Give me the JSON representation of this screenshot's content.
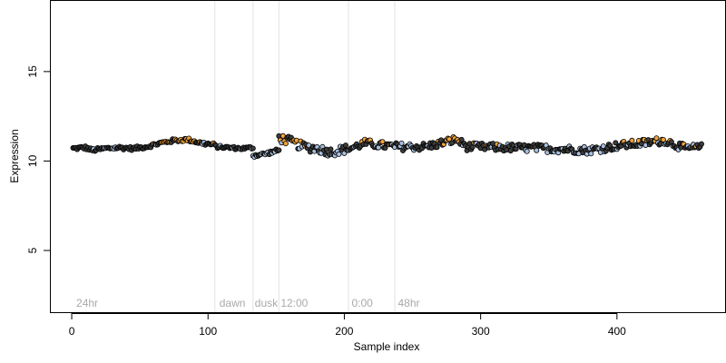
{
  "chart_data": {
    "type": "scatter",
    "title": "",
    "xlabel": "Sample index",
    "ylabel": "Expression",
    "xlim": [
      -16,
      480
    ],
    "ylim": [
      1.5,
      19
    ],
    "x_ticks": [
      0,
      100,
      200,
      300,
      400
    ],
    "y_ticks": [
      5,
      10,
      15
    ],
    "grid": false,
    "colors": {
      "point_edge": "#000000",
      "fill_black": "#3c3c3c",
      "fill_blue": "#a8c0e0",
      "fill_orange": "#f0a33c",
      "boundary_line": "#e3e3e3",
      "annotation_text": "#a9a9a9"
    },
    "annotations": [
      {
        "label": "24hr",
        "x": 2
      },
      {
        "label": "dawn",
        "x": 107
      },
      {
        "label": "dusk",
        "x": 133
      },
      {
        "label": "12:00",
        "x": 152
      },
      {
        "label": "0:00",
        "x": 204
      },
      {
        "label": "48hr",
        "x": 238
      }
    ],
    "boundaries": [
      105,
      133,
      152,
      203,
      237
    ],
    "segments": [
      {
        "x_start": 1,
        "x_end": 105,
        "y_profile": [
          [
            1,
            10.7
          ],
          [
            10,
            10.75
          ],
          [
            15,
            10.6
          ],
          [
            25,
            10.7
          ],
          [
            35,
            10.75
          ],
          [
            45,
            10.7
          ],
          [
            55,
            10.8
          ],
          [
            65,
            11.0
          ],
          [
            75,
            11.15
          ],
          [
            85,
            11.2
          ],
          [
            95,
            11.0
          ],
          [
            105,
            10.9
          ]
        ],
        "noise": 0.1,
        "color_pattern": "hm"
      },
      {
        "x_start": 106,
        "x_end": 133,
        "y_profile": [
          [
            106,
            10.8
          ],
          [
            115,
            10.75
          ],
          [
            125,
            10.7
          ],
          [
            133,
            10.75
          ]
        ],
        "noise": 0.08,
        "color_pattern": "hm"
      },
      {
        "x_start": 133,
        "x_end": 152,
        "y_profile": [
          [
            133,
            10.3
          ],
          [
            142,
            10.4
          ],
          [
            152,
            10.6
          ]
        ],
        "noise": 0.1,
        "color_pattern": "hm"
      },
      {
        "x_start": 152,
        "x_end": 203,
        "y_profile": [
          [
            152,
            11.3
          ],
          [
            160,
            11.1
          ],
          [
            170,
            10.8
          ],
          [
            180,
            10.7
          ],
          [
            190,
            10.5
          ],
          [
            203,
            10.7
          ]
        ],
        "noise": 0.25,
        "color_pattern": "hm"
      },
      {
        "x_start": 204,
        "x_end": 237,
        "y_profile": [
          [
            204,
            10.7
          ],
          [
            215,
            11.0
          ],
          [
            225,
            10.9
          ],
          [
            237,
            10.8
          ]
        ],
        "noise": 0.22,
        "color_pattern": "hm"
      },
      {
        "x_start": 238,
        "x_end": 462,
        "y_profile": [
          [
            238,
            10.8
          ],
          [
            260,
            10.8
          ],
          [
            282,
            11.2
          ],
          [
            290,
            10.8
          ],
          [
            320,
            10.75
          ],
          [
            350,
            10.7
          ],
          [
            380,
            10.6
          ],
          [
            400,
            10.85
          ],
          [
            425,
            11.05
          ],
          [
            435,
            11.15
          ],
          [
            450,
            10.7
          ],
          [
            462,
            10.75
          ]
        ],
        "noise": 0.22,
        "color_pattern": "hm"
      }
    ]
  }
}
